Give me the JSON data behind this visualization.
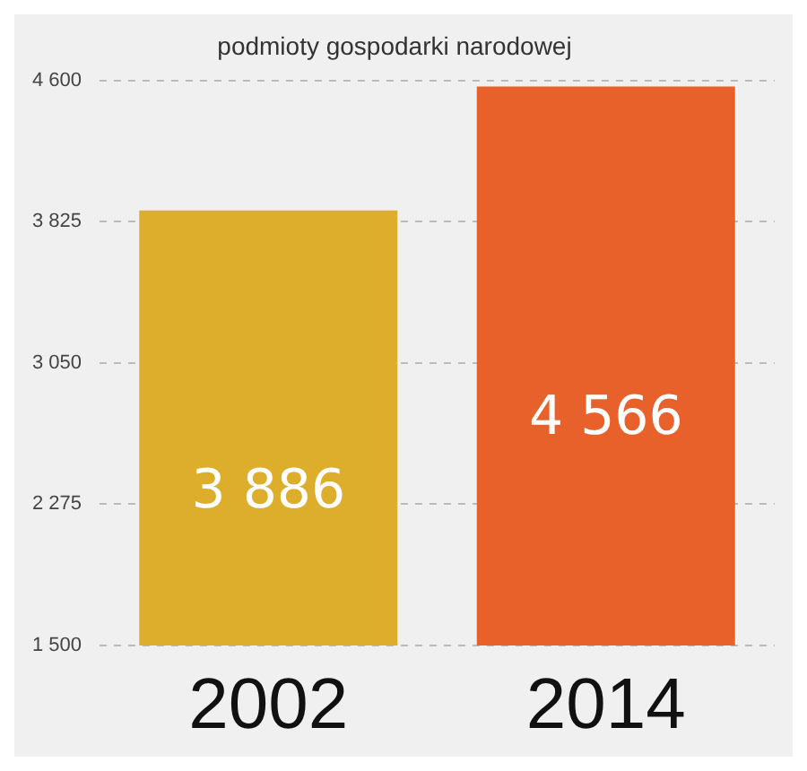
{
  "chart_data": {
    "type": "bar",
    "title": "podmioty gospodarki narodowej",
    "categories": [
      "2002",
      "2014"
    ],
    "values": [
      3886,
      4566
    ],
    "colors": [
      "#dcae2c",
      "#e8612a"
    ],
    "value_labels": [
      "3 886",
      "4 566"
    ],
    "ylim": [
      1500,
      4600
    ],
    "yticks": [
      {
        "value": 1500,
        "label": "1 500"
      },
      {
        "value": 2275,
        "label": "2 275"
      },
      {
        "value": 3050,
        "label": "3 050"
      },
      {
        "value": 3825,
        "label": "3 825"
      },
      {
        "value": 4600,
        "label": "4 600"
      }
    ],
    "grid": "y",
    "legend": false
  }
}
